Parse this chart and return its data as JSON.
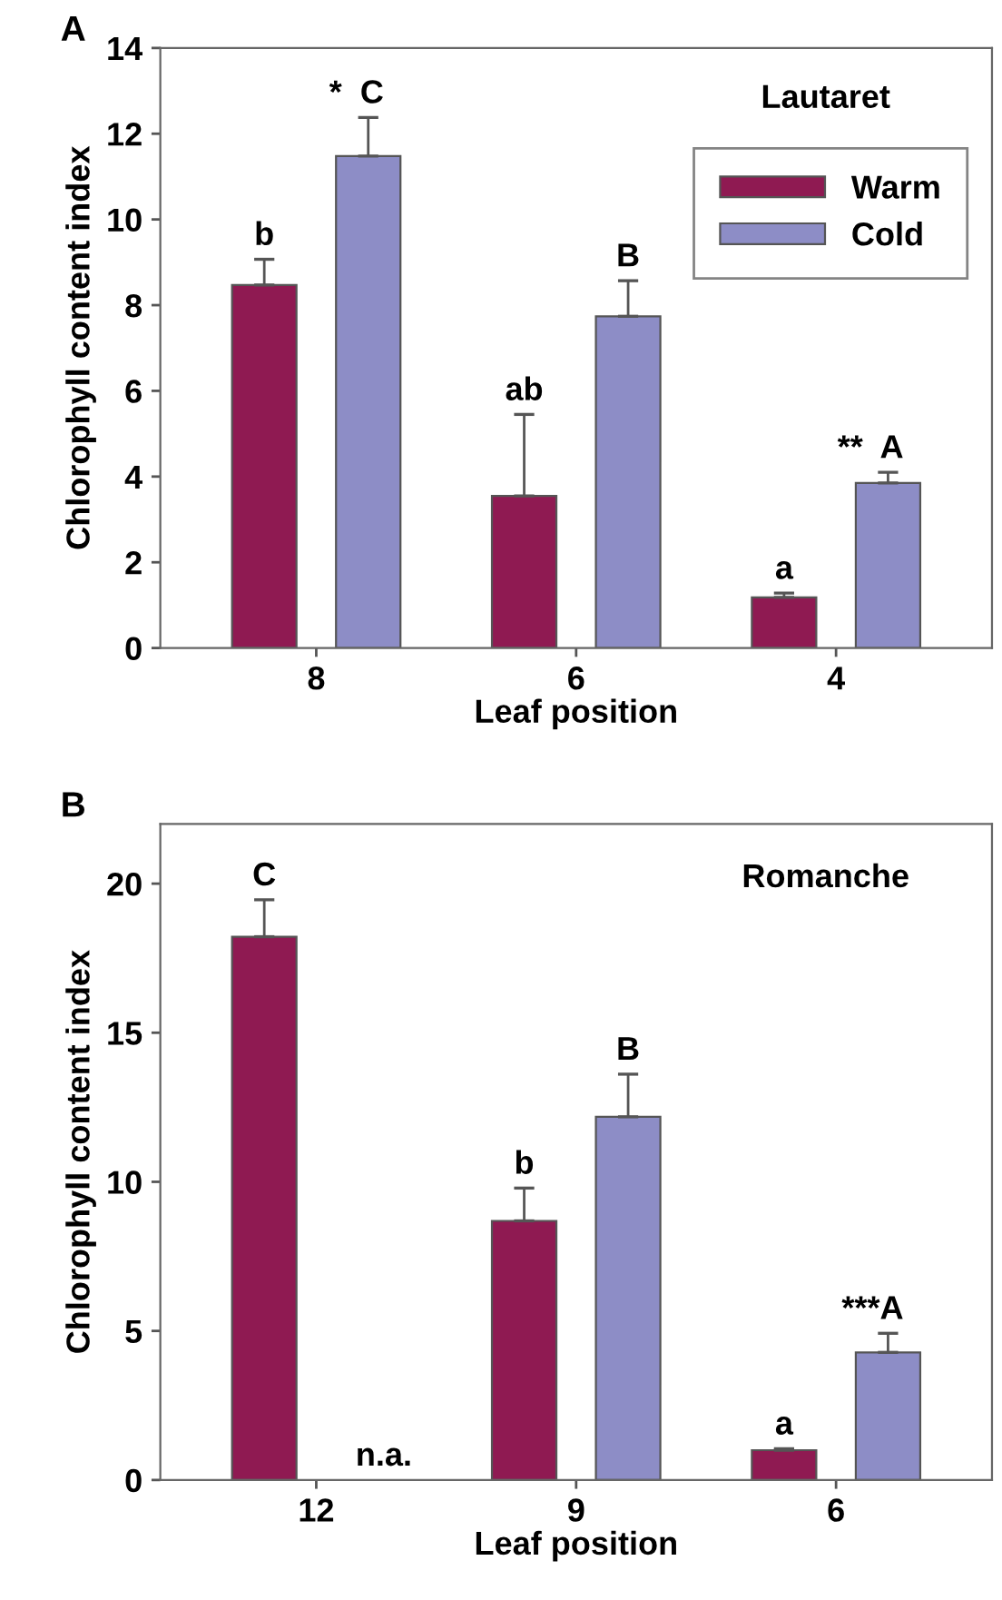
{
  "chart_data": [
    {
      "type": "bar",
      "title": "Lautaret",
      "xlabel": "Leaf position",
      "ylabel": "Chlorophyll content index",
      "categories": [
        "8",
        "6",
        "4"
      ],
      "series": [
        {
          "name": "Warm",
          "color": "#8f1a52",
          "values": [
            8.47,
            3.55,
            1.18
          ],
          "errors": [
            0.6,
            1.9,
            0.1
          ],
          "value_labels": [
            "b",
            "ab",
            "a"
          ]
        },
        {
          "name": "Cold",
          "color": "#8d8dc6",
          "values": [
            11.48,
            7.74,
            3.85
          ],
          "errors": [
            0.9,
            0.83,
            0.25
          ],
          "value_labels": [
            "*  C",
            "B",
            "**  A"
          ]
        }
      ],
      "ylim": [
        0,
        14
      ],
      "yticks": [
        0,
        2,
        4,
        6,
        8,
        10,
        12,
        14
      ],
      "legend": "top right",
      "annotations": [
        "A"
      ]
    },
    {
      "type": "bar",
      "title": "Romanche",
      "xlabel": "Leaf position",
      "ylabel": "Chlorophyll content index",
      "categories": [
        "12",
        "9",
        "6"
      ],
      "series": [
        {
          "color": "#8f1a52",
          "values": [
            18.22,
            8.69,
            1.0
          ],
          "errors": [
            1.24,
            1.1,
            0.05
          ],
          "value_labels": [
            "C",
            "b",
            "a"
          ]
        },
        {
          "color": "#8d8dc6",
          "values": [
            null,
            12.18,
            4.28
          ],
          "errors": [
            null,
            1.43,
            0.64
          ],
          "value_labels": [
            "n.a.",
            "B",
            "***A"
          ]
        }
      ],
      "ylim": [
        0,
        22
      ],
      "yticks": [
        0,
        5,
        10,
        15,
        20
      ],
      "annotations": [
        "B"
      ]
    }
  ]
}
